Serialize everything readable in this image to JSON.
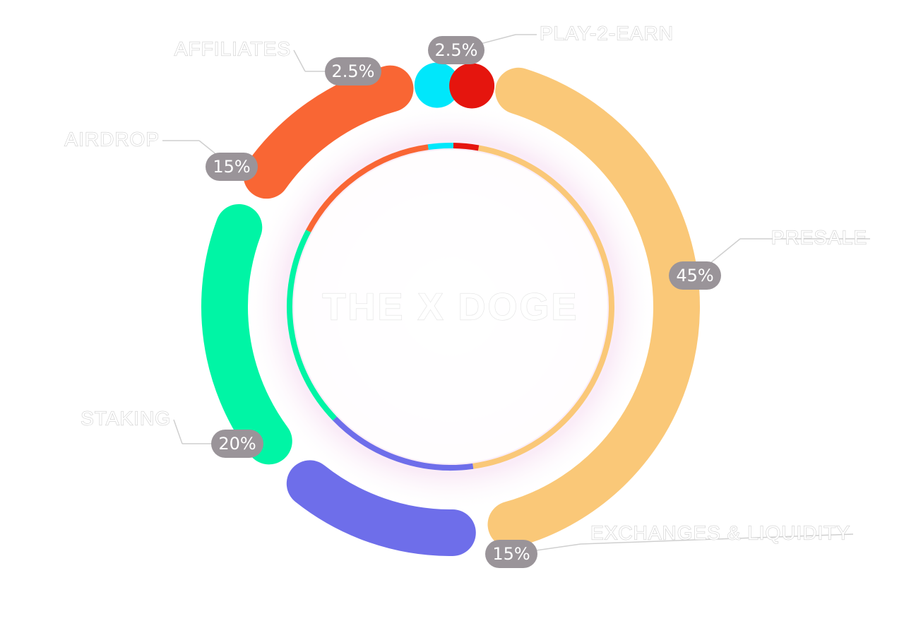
{
  "chart_data": {
    "type": "pie",
    "title": "",
    "center_text": "THE X DOGE",
    "slices": [
      {
        "label": "PRESALE",
        "value": 45,
        "value_label": "45%",
        "color": "#FAC878"
      },
      {
        "label": "EXCHANGES & LIQUIDITY",
        "value": 15,
        "value_label": "15%",
        "color": "#6E6EEA"
      },
      {
        "label": "STAKING",
        "value": 20,
        "value_label": "20%",
        "color": "#00F5A5"
      },
      {
        "label": "AIRDROP",
        "value": 15,
        "value_label": "15%",
        "color": "#F96634"
      },
      {
        "label": "AFFILIATES",
        "value": 2.5,
        "value_label": "2.5%",
        "color": "#00E7FB"
      },
      {
        "label": "PLAY-2-EARN",
        "value": 2.5,
        "value_label": "2.5%",
        "color": "#E5150E"
      }
    ],
    "legend": "labels outside with leader lines",
    "badge_color": "#9A9499"
  }
}
